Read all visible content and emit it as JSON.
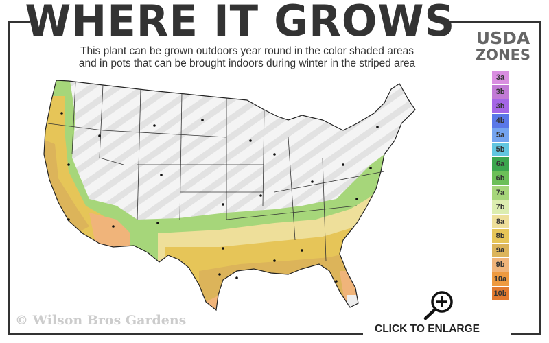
{
  "header": {
    "title": "WHERE IT GROWS",
    "subtitle_line1": "This plant can be grown outdoors year round in the color shaded areas",
    "subtitle_line2": "and in pots that can be brought indoors during winter in the striped area"
  },
  "legend": {
    "title_line1": "USDA",
    "title_line2": "ZONES",
    "zones": [
      {
        "label": "3a",
        "color": "#d98ee0"
      },
      {
        "label": "3b",
        "color": "#c27ad6"
      },
      {
        "label": "3b",
        "color": "#a466e6"
      },
      {
        "label": "4b",
        "color": "#5a78e8"
      },
      {
        "label": "5a",
        "color": "#74a4f0"
      },
      {
        "label": "5b",
        "color": "#62c6e0"
      },
      {
        "label": "6a",
        "color": "#3ca64e"
      },
      {
        "label": "6b",
        "color": "#6cbf58"
      },
      {
        "label": "7a",
        "color": "#a6d67a"
      },
      {
        "label": "7b",
        "color": "#dcedb0"
      },
      {
        "label": "8a",
        "color": "#eedf9a"
      },
      {
        "label": "8b",
        "color": "#e6c558"
      },
      {
        "label": "9a",
        "color": "#dcb45a"
      },
      {
        "label": "9b",
        "color": "#f0b47a"
      },
      {
        "label": "10a",
        "color": "#ee9a40"
      },
      {
        "label": "10b",
        "color": "#e27a30"
      }
    ]
  },
  "map": {
    "shaded_zone_colors": [
      "#a6d67a",
      "#dcedb0",
      "#e6c558",
      "#dcb45a",
      "#f0b47a"
    ]
  },
  "copyright": "© Wilson Bros Gardens",
  "enlarge": {
    "label": "CLICK TO ENLARGE",
    "icon": "zoom-in-magnifier-icon"
  }
}
